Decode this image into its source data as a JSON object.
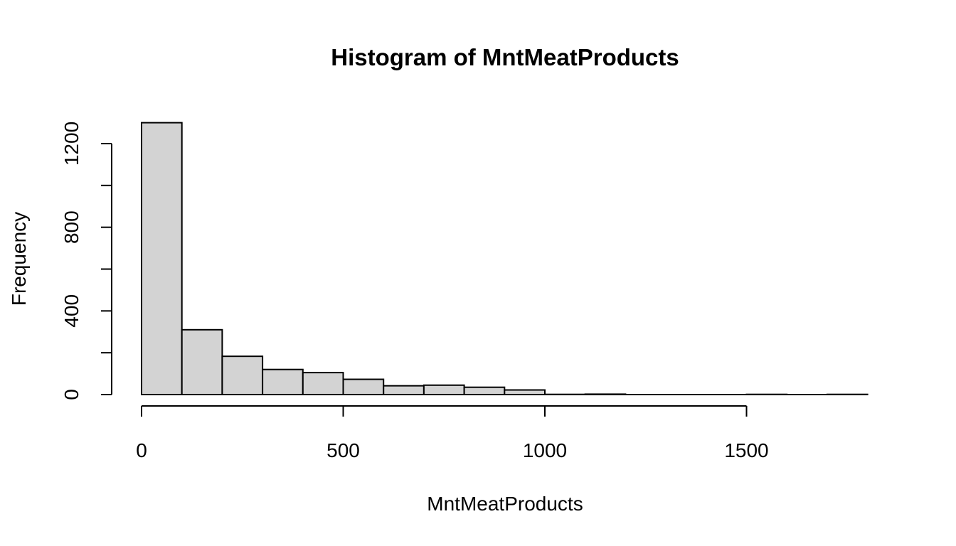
{
  "chart_data": {
    "type": "bar",
    "title": "Histogram of MntMeatProducts",
    "xlabel": "MntMeatProducts",
    "ylabel": "Frequency",
    "bin_edges": [
      0,
      100,
      200,
      300,
      400,
      500,
      600,
      700,
      800,
      900,
      1000,
      1100,
      1200,
      1300,
      1400,
      1500,
      1600,
      1700,
      1800
    ],
    "values": [
      1300,
      310,
      183,
      120,
      105,
      73,
      42,
      45,
      35,
      22,
      1,
      2,
      0,
      0,
      0,
      1,
      0,
      1
    ],
    "xlim": [
      0,
      1800
    ],
    "ylim": [
      0,
      1300
    ],
    "x_ticks": [
      0,
      500,
      1000,
      1500
    ],
    "y_ticks": [
      0,
      200,
      400,
      600,
      800,
      1000,
      1200
    ],
    "y_tick_labels": [
      "0",
      "",
      "400",
      "",
      "800",
      "",
      "1200"
    ],
    "bar_color": "#d3d3d3",
    "bar_border_color": "#000000",
    "grid": false
  }
}
